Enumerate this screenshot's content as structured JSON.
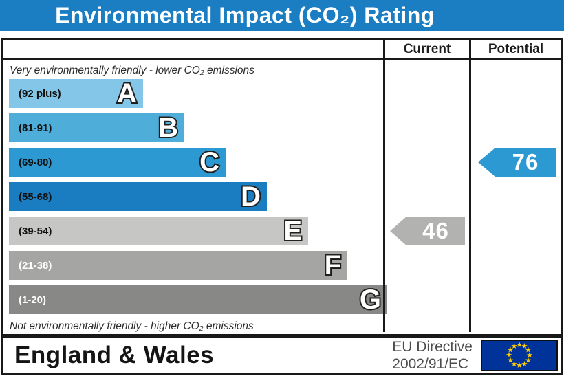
{
  "title": "Environmental Impact (CO₂) Rating",
  "columns": {
    "current": "Current",
    "potential": "Potential"
  },
  "captions": {
    "top": "Very environmentally friendly - lower CO₂ emissions",
    "bottom": "Not environmentally friendly - higher CO₂ emissions"
  },
  "footer": {
    "region": "England & Wales",
    "directive_line1": "EU Directive",
    "directive_line2": "2002/91/EC",
    "eu_flag": {
      "background": "#003399",
      "star_color": "#ffcc00",
      "star_count": 12
    }
  },
  "colors": {
    "title_bar": "#1b7dc2",
    "border": "#191919",
    "current_arrow": "#b2b2b0",
    "potential_arrow": "#2d99d2"
  },
  "chart_data": {
    "type": "bar",
    "title": "Environmental Impact (CO₂) Rating",
    "bands": [
      {
        "letter": "A",
        "range": "(92 plus)",
        "min": 92,
        "max": 100,
        "color": "#83c6e8"
      },
      {
        "letter": "B",
        "range": "(81-91)",
        "min": 81,
        "max": 91,
        "color": "#4fadda"
      },
      {
        "letter": "C",
        "range": "(69-80)",
        "min": 69,
        "max": 80,
        "color": "#2d99d2"
      },
      {
        "letter": "D",
        "range": "(55-68)",
        "min": 55,
        "max": 68,
        "color": "#1a7cc1"
      },
      {
        "letter": "E",
        "range": "(39-54)",
        "min": 39,
        "max": 54,
        "color": "#c6c6c4"
      },
      {
        "letter": "F",
        "range": "(21-38)",
        "min": 21,
        "max": 38,
        "color": "#a5a5a3"
      },
      {
        "letter": "G",
        "range": "(1-20)",
        "min": 1,
        "max": 20,
        "color": "#888886"
      }
    ],
    "current": {
      "value": 46,
      "band": "E",
      "color": "#b2b2b0"
    },
    "potential": {
      "value": 76,
      "band": "C",
      "color": "#2d99d2"
    }
  }
}
